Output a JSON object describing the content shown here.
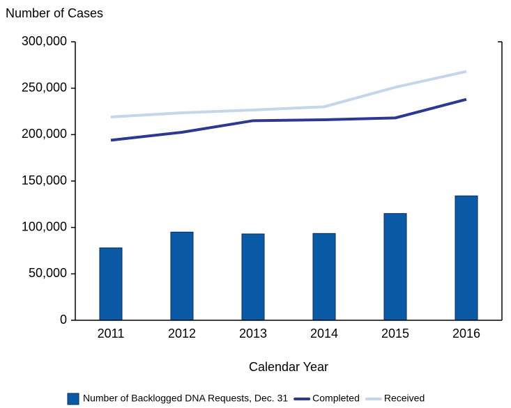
{
  "chart_data": {
    "type": "combo",
    "y_label": "Number of Cases",
    "x_label": "Calendar Year",
    "categories": [
      "2011",
      "2012",
      "2013",
      "2014",
      "2015",
      "2016"
    ],
    "series": [
      {
        "name": "Number of Backlogged DNA Requests, Dec. 31",
        "type": "bar",
        "color": "#0b5aa6",
        "values": [
          78000,
          95000,
          93000,
          93500,
          115000,
          134000
        ]
      },
      {
        "name": "Completed",
        "type": "line",
        "color": "#2b3990",
        "values": [
          194000,
          202500,
          215000,
          216000,
          218000,
          238000
        ]
      },
      {
        "name": "Received",
        "type": "line",
        "color": "#c5d5ea",
        "values": [
          219000,
          223500,
          226500,
          230000,
          251000,
          268000
        ]
      }
    ],
    "ylim": [
      0,
      300000
    ],
    "yticks": [
      0,
      {
        "value": 50000,
        "label": "50,000"
      },
      {
        "value": 100000,
        "label": "100,000"
      },
      {
        "value": 150000,
        "label": "150,000"
      },
      {
        "value": 200000,
        "label": "200,000"
      },
      {
        "value": 250000,
        "label": "250,000"
      },
      {
        "value": 300000,
        "label": "300,000"
      }
    ],
    "grid": false,
    "legend": "bottom"
  }
}
